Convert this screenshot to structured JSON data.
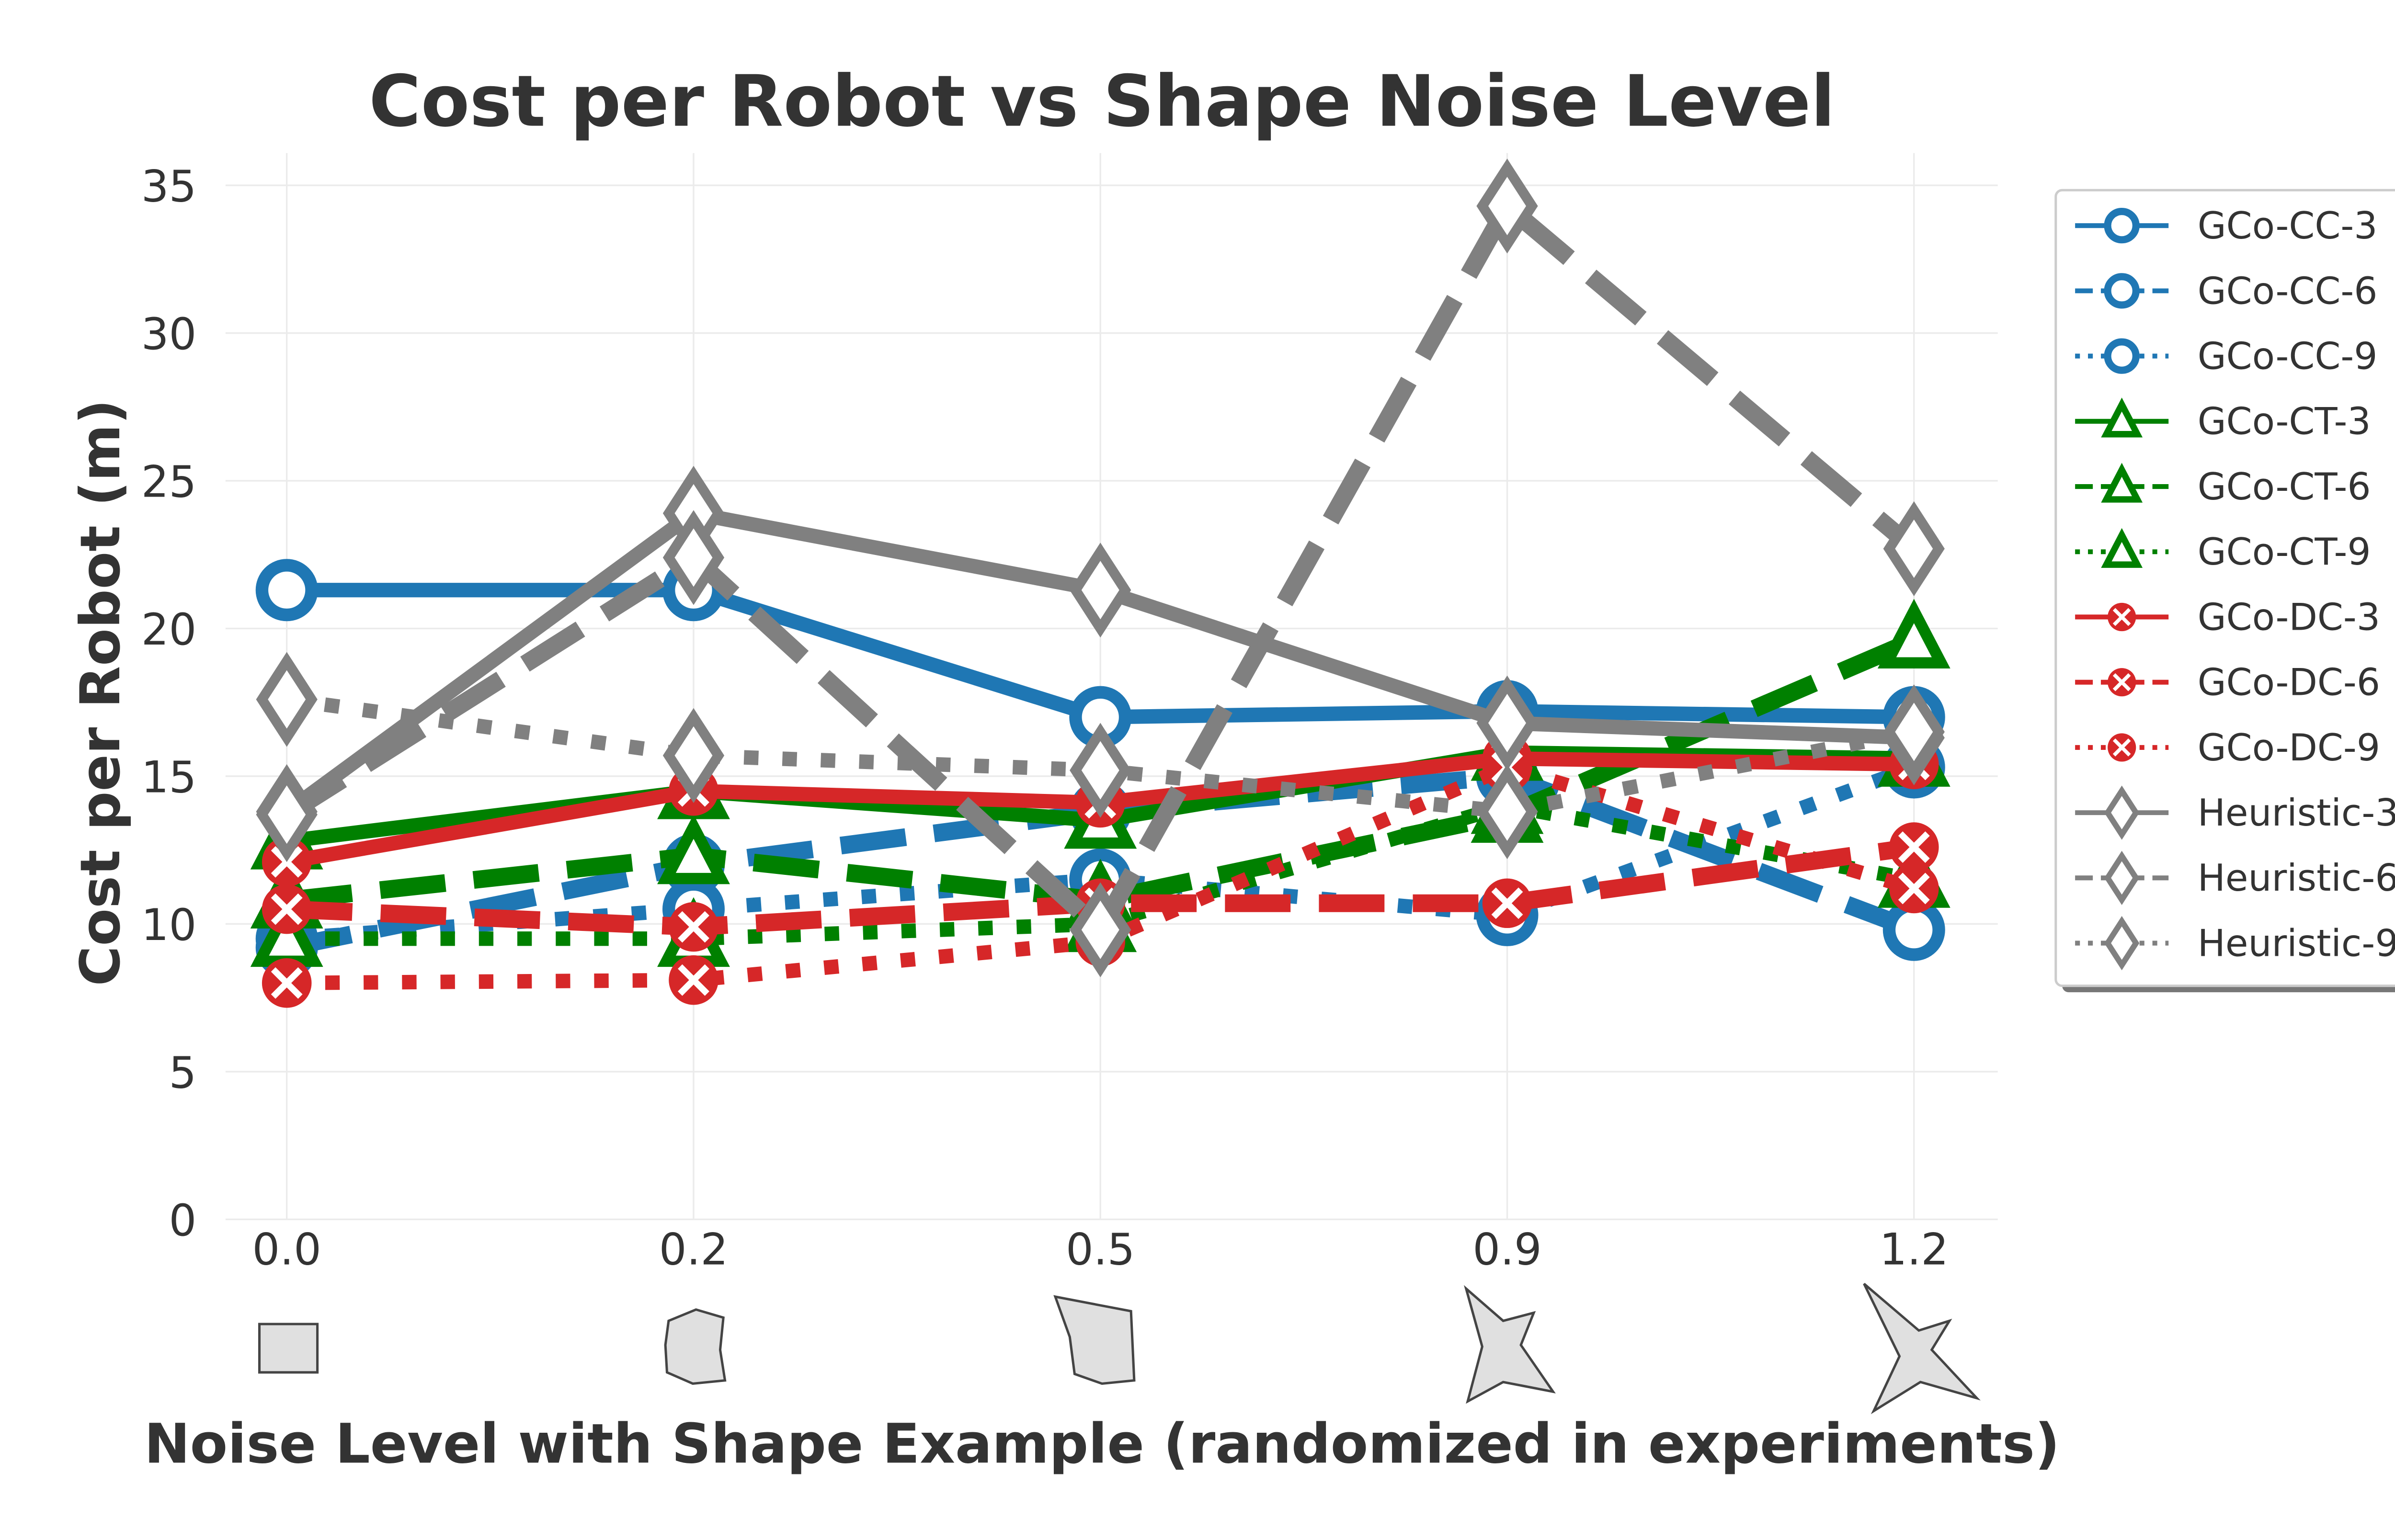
{
  "chart_data": {
    "type": "line",
    "title": "Cost per Robot vs Shape Noise Level",
    "xlabel": "Noise Level with Shape Example (randomized in experiments)",
    "ylabel": "Cost per Robot (m)",
    "categories": [
      "0.0",
      "0.2",
      "0.5",
      "0.9",
      "1.2"
    ],
    "ylim": [
      0,
      35
    ],
    "yticks": [
      "0",
      "5",
      "10",
      "15",
      "20",
      "25",
      "30",
      "35"
    ],
    "grid": true,
    "legend_placement": "outside-right",
    "shape_examples": [
      "square",
      "slightly-noisy-polygon",
      "noisy-polygon",
      "four-point-star",
      "sharp-four-point-star"
    ],
    "series": [
      {
        "name": "GCo-CC-3",
        "color": "#1f77b4",
        "style": "solid",
        "marker": "circle",
        "values": [
          21.3,
          21.3,
          17.0,
          17.2,
          17.0
        ]
      },
      {
        "name": "GCo-CC-6",
        "color": "#1f77b4",
        "style": "dashed",
        "marker": "circle",
        "values": [
          9.2,
          12.0,
          13.8,
          15.0,
          9.8
        ]
      },
      {
        "name": "GCo-CC-9",
        "color": "#1f77b4",
        "style": "dotted",
        "marker": "circle",
        "values": [
          9.5,
          10.5,
          11.5,
          10.3,
          15.3
        ]
      },
      {
        "name": "GCo-CT-3",
        "color": "#008000",
        "style": "solid",
        "marker": "triangle",
        "values": [
          12.8,
          14.5,
          13.5,
          15.8,
          15.6
        ]
      },
      {
        "name": "GCo-CT-6",
        "color": "#008000",
        "style": "dashed",
        "marker": "triangle",
        "values": [
          10.8,
          12.3,
          10.8,
          13.7,
          19.6
        ]
      },
      {
        "name": "GCo-CT-9",
        "color": "#008000",
        "style": "dotted",
        "marker": "triangle",
        "values": [
          9.5,
          9.5,
          10.0,
          14.0,
          11.5
        ]
      },
      {
        "name": "GCo-DC-3",
        "color": "#d62728",
        "style": "solid",
        "marker": "x",
        "values": [
          12.1,
          14.5,
          14.1,
          15.6,
          15.4
        ]
      },
      {
        "name": "GCo-DC-6",
        "color": "#d62728",
        "style": "dashed",
        "marker": "x",
        "values": [
          10.5,
          9.9,
          10.7,
          10.7,
          12.6
        ]
      },
      {
        "name": "GCo-DC-9",
        "color": "#d62728",
        "style": "dotted",
        "marker": "x",
        "values": [
          8.0,
          8.1,
          9.4,
          15.3,
          11.2
        ]
      },
      {
        "name": "Heuristic-3",
        "color": "#808080",
        "style": "solid",
        "marker": "diamond",
        "values": [
          13.8,
          23.9,
          21.3,
          16.8,
          16.3
        ]
      },
      {
        "name": "Heuristic-6",
        "color": "#808080",
        "style": "dashed",
        "marker": "diamond",
        "values": [
          13.7,
          22.4,
          9.8,
          34.3,
          22.7
        ]
      },
      {
        "name": "Heuristic-9",
        "color": "#808080",
        "style": "dotted",
        "marker": "diamond",
        "values": [
          17.6,
          15.7,
          15.2,
          13.8,
          16.5
        ]
      }
    ]
  }
}
